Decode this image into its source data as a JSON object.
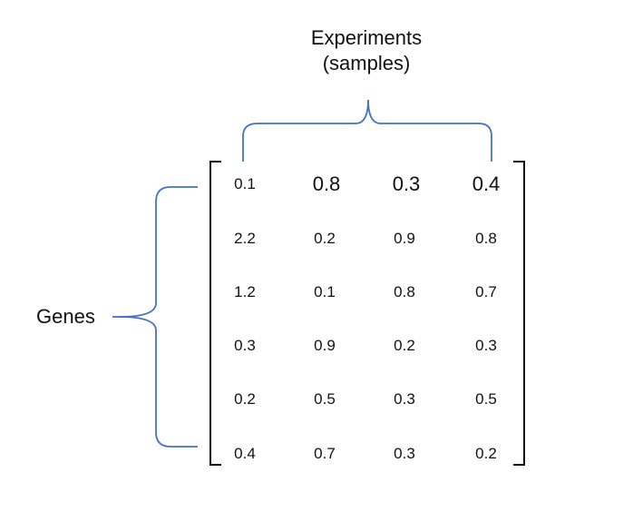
{
  "labels": {
    "experiments_title": "Experiments",
    "experiments_subtitle": "(samples)",
    "genes": "Genes"
  },
  "matrix": {
    "rows": [
      [
        "0.1",
        "0.8",
        "0.3",
        "0.4"
      ],
      [
        "2.2",
        "0.2",
        "0.9",
        "0.8"
      ],
      [
        "1.2",
        "0.1",
        "0.8",
        "0.7"
      ],
      [
        "0.3",
        "0.9",
        "0.2",
        "0.3"
      ],
      [
        "0.2",
        "0.5",
        "0.3",
        "0.5"
      ],
      [
        "0.4",
        "0.7",
        "0.3",
        "0.2"
      ]
    ]
  },
  "colors": {
    "brace": "#4472c4",
    "bracket": "#111111",
    "text": "#111111"
  }
}
